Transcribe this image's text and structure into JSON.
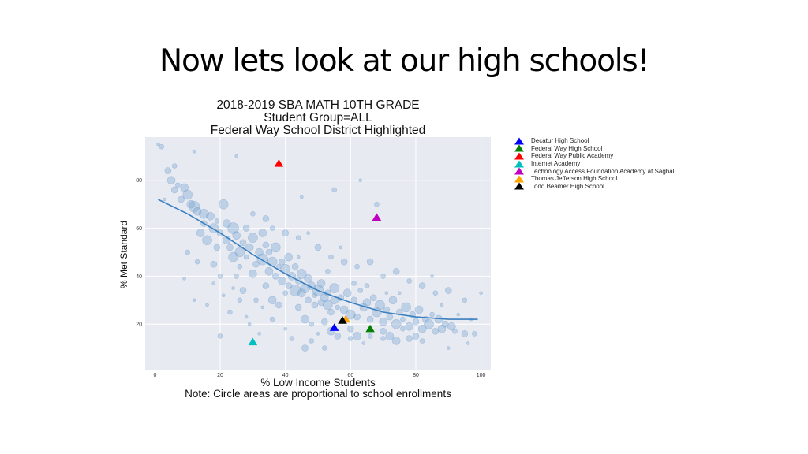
{
  "slide": {
    "title": "Now lets look at our high schools!"
  },
  "chart_data": {
    "type": "scatter",
    "title_lines": [
      "2018-2019 SBA MATH 10TH GRADE",
      "Student Group=ALL",
      "Federal Way School District Highlighted"
    ],
    "xlabel": "% Low Income Students",
    "ylabel": "% Met Standard",
    "note": "Note: Circle areas are proportional to school enrollments",
    "xlim": [
      -3,
      103
    ],
    "ylim": [
      1,
      98
    ],
    "xticks": [
      0,
      20,
      40,
      60,
      80,
      100
    ],
    "yticks": [
      20,
      40,
      60,
      80
    ],
    "grid": true,
    "legend_position": "right-outside",
    "colors": {
      "circles": "#6fa0cf",
      "trend": "#3a7fbf",
      "background": "#e8eaf2"
    },
    "highlighted_schools": [
      {
        "name": "Decatur High School",
        "x": 55,
        "y": 18.5,
        "color": "#0000ff"
      },
      {
        "name": "Federal Way High School",
        "x": 66,
        "y": 18,
        "color": "#008000"
      },
      {
        "name": "Federal Way Public Academy",
        "x": 38,
        "y": 87,
        "color": "#ff0000"
      },
      {
        "name": "Internet Academy",
        "x": 30,
        "y": 12.5,
        "color": "#00bfbf"
      },
      {
        "name": "Technology Access Foundation Academy at Saghali",
        "x": 68,
        "y": 64.5,
        "color": "#bf00bf"
      },
      {
        "name": "Thomas Jefferson High School",
        "x": 58.5,
        "y": 22,
        "color": "#ffa500"
      },
      {
        "name": "Todd Beamer High School",
        "x": 57.5,
        "y": 21.5,
        "color": "#000000"
      }
    ],
    "trend_line": [
      [
        1,
        72
      ],
      [
        10,
        66
      ],
      [
        20,
        58
      ],
      [
        30,
        49
      ],
      [
        40,
        41
      ],
      [
        50,
        34
      ],
      [
        60,
        29
      ],
      [
        70,
        25
      ],
      [
        80,
        23
      ],
      [
        90,
        22
      ],
      [
        99,
        22
      ]
    ],
    "schools": [
      [
        1,
        95,
        2
      ],
      [
        2,
        94,
        3
      ],
      [
        4,
        84,
        4
      ],
      [
        5,
        80,
        5
      ],
      [
        6,
        76,
        4
      ],
      [
        7,
        78,
        3
      ],
      [
        9,
        77,
        5
      ],
      [
        10,
        74,
        6
      ],
      [
        11,
        70,
        5
      ],
      [
        12,
        69,
        7
      ],
      [
        13,
        67,
        5
      ],
      [
        15,
        66,
        6
      ],
      [
        15,
        62,
        4
      ],
      [
        17,
        65,
        5
      ],
      [
        18,
        60,
        6
      ],
      [
        19,
        63,
        3
      ],
      [
        20,
        58,
        4
      ],
      [
        21,
        70,
        6
      ],
      [
        22,
        55,
        5
      ],
      [
        23,
        52,
        4
      ],
      [
        24,
        60,
        7
      ],
      [
        25,
        57,
        5
      ],
      [
        26,
        50,
        6
      ],
      [
        27,
        54,
        4
      ],
      [
        28,
        48,
        3
      ],
      [
        29,
        52,
        5
      ],
      [
        30,
        56,
        6
      ],
      [
        31,
        45,
        4
      ],
      [
        32,
        50,
        5
      ],
      [
        33,
        47,
        7
      ],
      [
        34,
        53,
        4
      ],
      [
        35,
        42,
        5
      ],
      [
        36,
        46,
        6
      ],
      [
        37,
        40,
        4
      ],
      [
        38,
        44,
        3
      ],
      [
        39,
        38,
        5
      ],
      [
        40,
        43,
        6
      ],
      [
        41,
        36,
        4
      ],
      [
        42,
        40,
        5
      ],
      [
        43,
        34,
        7
      ],
      [
        44,
        38,
        4
      ],
      [
        45,
        33,
        5
      ],
      [
        46,
        35,
        6
      ],
      [
        47,
        30,
        4
      ],
      [
        48,
        36,
        5
      ],
      [
        49,
        32,
        3
      ],
      [
        50,
        34,
        7
      ],
      [
        51,
        29,
        4
      ],
      [
        52,
        31,
        5
      ],
      [
        53,
        28,
        6
      ],
      [
        54,
        25,
        4
      ],
      [
        55,
        30,
        5
      ],
      [
        56,
        27,
        3
      ],
      [
        58,
        26,
        5
      ],
      [
        60,
        24,
        6
      ],
      [
        62,
        23,
        4
      ],
      [
        64,
        27,
        5
      ],
      [
        66,
        22,
        4
      ],
      [
        68,
        25,
        6
      ],
      [
        70,
        21,
        5
      ],
      [
        72,
        23,
        4
      ],
      [
        74,
        20,
        6
      ],
      [
        76,
        22,
        3
      ],
      [
        78,
        19,
        5
      ],
      [
        80,
        21,
        4
      ],
      [
        82,
        18,
        5
      ],
      [
        84,
        20,
        6
      ],
      [
        86,
        17,
        4
      ],
      [
        88,
        18,
        5
      ],
      [
        92,
        17,
        3
      ],
      [
        95,
        16,
        4
      ],
      [
        98,
        16,
        3
      ],
      [
        8,
        72,
        4
      ],
      [
        14,
        58,
        5
      ],
      [
        16,
        55,
        6
      ],
      [
        19,
        52,
        4
      ],
      [
        22,
        62,
        5
      ],
      [
        24,
        48,
        6
      ],
      [
        26,
        44,
        3
      ],
      [
        28,
        60,
        4
      ],
      [
        30,
        41,
        5
      ],
      [
        33,
        58,
        5
      ],
      [
        35,
        50,
        4
      ],
      [
        37,
        52,
        6
      ],
      [
        39,
        46,
        4
      ],
      [
        41,
        48,
        5
      ],
      [
        43,
        44,
        4
      ],
      [
        45,
        41,
        6
      ],
      [
        47,
        39,
        5
      ],
      [
        49,
        28,
        4
      ],
      [
        51,
        37,
        5
      ],
      [
        53,
        33,
        4
      ],
      [
        55,
        35,
        6
      ],
      [
        57,
        31,
        4
      ],
      [
        59,
        33,
        5
      ],
      [
        61,
        30,
        4
      ],
      [
        63,
        34,
        3
      ],
      [
        65,
        29,
        5
      ],
      [
        67,
        31,
        4
      ],
      [
        69,
        28,
        6
      ],
      [
        71,
        26,
        4
      ],
      [
        73,
        30,
        5
      ],
      [
        75,
        25,
        4
      ],
      [
        77,
        27,
        6
      ],
      [
        79,
        24,
        4
      ],
      [
        81,
        26,
        5
      ],
      [
        83,
        22,
        4
      ],
      [
        85,
        24,
        3
      ],
      [
        87,
        22,
        5
      ],
      [
        89,
        20,
        4
      ],
      [
        91,
        19,
        5
      ],
      [
        3,
        72,
        2
      ],
      [
        6,
        86,
        3
      ],
      [
        10,
        50,
        3
      ],
      [
        12,
        30,
        2
      ],
      [
        16,
        28,
        2
      ],
      [
        20,
        15,
        3
      ],
      [
        24,
        35,
        2
      ],
      [
        26,
        30,
        3
      ],
      [
        29,
        20,
        2
      ],
      [
        33,
        27,
        2
      ],
      [
        36,
        22,
        3
      ],
      [
        40,
        18,
        2
      ],
      [
        42,
        14,
        3
      ],
      [
        46,
        10,
        4
      ],
      [
        48,
        13,
        3
      ],
      [
        50,
        16,
        2
      ],
      [
        52,
        10,
        3
      ],
      [
        56,
        15,
        4
      ],
      [
        60,
        14,
        3
      ],
      [
        64,
        12,
        2
      ],
      [
        70,
        14,
        3
      ],
      [
        74,
        13,
        5
      ],
      [
        78,
        14,
        4
      ],
      [
        82,
        13,
        3
      ],
      [
        90,
        10,
        2
      ],
      [
        96,
        12,
        2
      ],
      [
        18,
        45,
        4
      ],
      [
        20,
        40,
        3
      ],
      [
        23,
        25,
        3
      ],
      [
        27,
        34,
        4
      ],
      [
        31,
        30,
        3
      ],
      [
        34,
        36,
        4
      ],
      [
        36,
        30,
        5
      ],
      [
        38,
        28,
        4
      ],
      [
        40,
        33,
        3
      ],
      [
        44,
        27,
        4
      ],
      [
        46,
        22,
        5
      ],
      [
        48,
        20,
        3
      ],
      [
        52,
        21,
        4
      ],
      [
        54,
        17,
        5
      ],
      [
        60,
        18,
        4
      ],
      [
        62,
        15,
        5
      ],
      [
        66,
        15,
        3
      ],
      [
        70,
        17,
        4
      ],
      [
        72,
        15,
        5
      ],
      [
        76,
        18,
        3
      ],
      [
        80,
        15,
        4
      ],
      [
        30,
        66,
        3
      ],
      [
        34,
        64,
        4
      ],
      [
        36,
        60,
        3
      ],
      [
        40,
        58,
        4
      ],
      [
        44,
        56,
        3
      ],
      [
        50,
        52,
        4
      ],
      [
        54,
        48,
        3
      ],
      [
        58,
        46,
        4
      ],
      [
        62,
        44,
        3
      ],
      [
        66,
        46,
        4
      ],
      [
        70,
        40,
        3
      ],
      [
        74,
        42,
        4
      ],
      [
        78,
        38,
        3
      ],
      [
        82,
        36,
        4
      ],
      [
        86,
        33,
        3
      ],
      [
        90,
        34,
        4
      ],
      [
        95,
        30,
        3
      ],
      [
        100,
        33,
        2
      ],
      [
        12,
        92,
        2
      ],
      [
        25,
        90,
        2
      ],
      [
        45,
        73,
        2
      ],
      [
        55,
        76,
        3
      ],
      [
        63,
        80,
        2
      ],
      [
        68,
        70,
        3
      ],
      [
        9,
        39,
        2
      ],
      [
        13,
        46,
        3
      ],
      [
        18,
        37,
        2
      ],
      [
        21,
        32,
        2
      ],
      [
        25,
        40,
        3
      ],
      [
        28,
        23,
        2
      ],
      [
        32,
        16,
        2
      ],
      [
        44,
        48,
        2
      ],
      [
        47,
        58,
        2
      ],
      [
        53,
        42,
        3
      ],
      [
        57,
        52,
        2
      ],
      [
        61,
        37,
        3
      ],
      [
        65,
        36,
        3
      ],
      [
        71,
        33,
        2
      ],
      [
        75,
        33,
        2
      ],
      [
        85,
        40,
        2
      ],
      [
        88,
        28,
        2
      ],
      [
        93,
        24,
        2
      ],
      [
        97,
        22,
        2
      ]
    ]
  }
}
